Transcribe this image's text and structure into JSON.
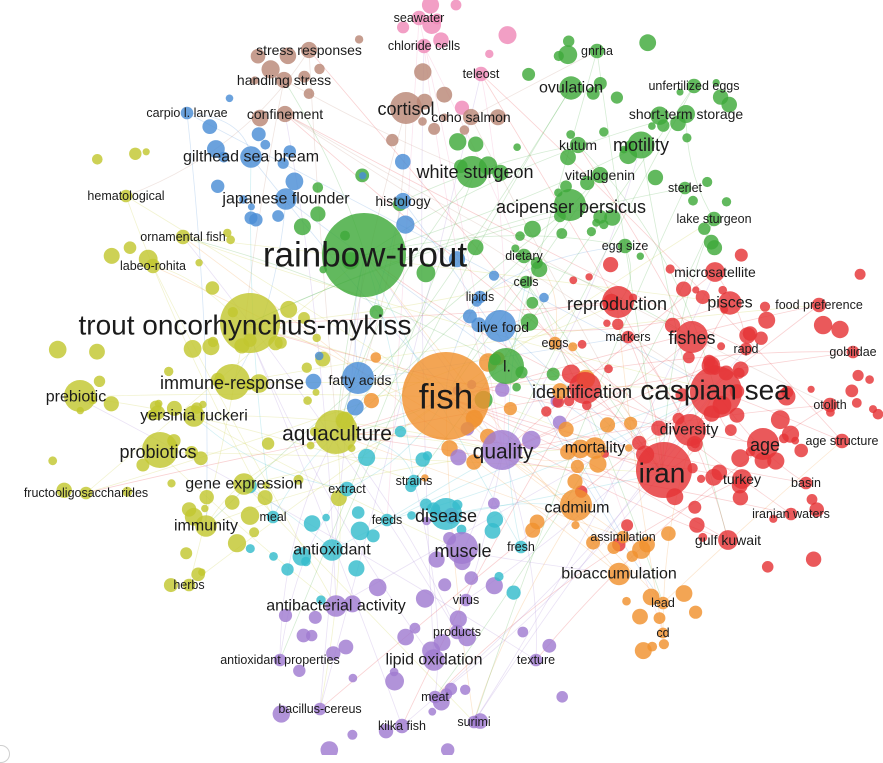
{
  "clusters": {
    "green": {
      "color": "#3fa93b"
    },
    "red": {
      "color": "#e53437"
    },
    "yellow": {
      "color": "#c2c72f"
    },
    "blue": {
      "color": "#4b8ed6"
    },
    "orange": {
      "color": "#f0912e"
    },
    "purple": {
      "color": "#a07bd1"
    },
    "cyan": {
      "color": "#35bccc"
    },
    "brown": {
      "color": "#b98776"
    },
    "pink": {
      "color": "#ef8ab8"
    }
  },
  "terms": [
    {
      "id": "fish",
      "text": "fish",
      "cluster": "orange",
      "weight": 100
    },
    {
      "id": "rainbow-trout",
      "text": "rainbow-trout",
      "cluster": "green",
      "weight": 95
    },
    {
      "id": "trout-oncorhynchus-mykiss",
      "text": "trout oncorhynchus-mykiss",
      "cluster": "yellow",
      "weight": 70
    },
    {
      "id": "caspian-sea",
      "text": "caspian sea",
      "cluster": "red",
      "weight": 60
    },
    {
      "id": "iran",
      "text": "iran",
      "cluster": "red",
      "weight": 62
    },
    {
      "id": "aquaculture",
      "text": "aquaculture",
      "cluster": "yellow",
      "weight": 48
    },
    {
      "id": "quality",
      "text": "quality",
      "cluster": "purple",
      "weight": 42
    },
    {
      "id": "white-sturgeon",
      "text": "white sturgeon",
      "cluster": "green",
      "weight": 35
    },
    {
      "id": "acipenser-persicus",
      "text": "acipenser persicus",
      "cluster": "green",
      "weight": 33
    },
    {
      "id": "identification",
      "text": "identification",
      "cluster": "red",
      "weight": 30
    },
    {
      "id": "reproduction",
      "text": "reproduction",
      "cluster": "red",
      "weight": 32
    },
    {
      "id": "fishes",
      "text": "fishes",
      "cluster": "red",
      "weight": 30
    },
    {
      "id": "immune-response",
      "text": "immune-response",
      "cluster": "yellow",
      "weight": 30
    },
    {
      "id": "probiotics",
      "text": "probiotics",
      "cluster": "yellow",
      "weight": 30
    },
    {
      "id": "prebiotic",
      "text": "prebiotic",
      "cluster": "yellow",
      "weight": 26
    },
    {
      "id": "yersinia-ruckeri",
      "text": "yersinia ruckeri",
      "cluster": "yellow",
      "weight": 24
    },
    {
      "id": "gene-expression",
      "text": "gene expression",
      "cluster": "yellow",
      "weight": 24
    },
    {
      "id": "immunity",
      "text": "immunity",
      "cluster": "yellow",
      "weight": 24
    },
    {
      "id": "disease",
      "text": "disease",
      "cluster": "cyan",
      "weight": 30
    },
    {
      "id": "muscle",
      "text": "muscle",
      "cluster": "purple",
      "weight": 32
    },
    {
      "id": "cadmium",
      "text": "cadmium",
      "cluster": "orange",
      "weight": 28
    },
    {
      "id": "bioaccumulation",
      "text": "bioaccumulation",
      "cluster": "orange",
      "weight": 25
    },
    {
      "id": "diversity",
      "text": "diversity",
      "cluster": "red",
      "weight": 26
    },
    {
      "id": "age",
      "text": "age",
      "cluster": "red",
      "weight": 30
    },
    {
      "id": "mortality",
      "text": "mortality",
      "cluster": "orange",
      "weight": 24
    },
    {
      "id": "cortisol",
      "text": "cortisol",
      "cluster": "brown",
      "weight": 30
    },
    {
      "id": "motility",
      "text": "motility",
      "cluster": "green",
      "weight": 30
    },
    {
      "id": "ovulation",
      "text": "ovulation",
      "cluster": "green",
      "weight": 26
    },
    {
      "id": "gilthead-sea-bream",
      "text": "gilthead sea bream",
      "cluster": "blue",
      "weight": 24
    },
    {
      "id": "japanese-flounder",
      "text": "japanese flounder",
      "cluster": "blue",
      "weight": 24
    },
    {
      "id": "antioxidant",
      "text": "antioxidant",
      "cluster": "cyan",
      "weight": 24
    },
    {
      "id": "antibacterial-activity",
      "text": "antibacterial activity",
      "cluster": "purple",
      "weight": 24
    },
    {
      "id": "lipid-oxidation",
      "text": "lipid oxidation",
      "cluster": "purple",
      "weight": 24
    },
    {
      "id": "pisces",
      "text": "pisces",
      "cluster": "red",
      "weight": 26
    },
    {
      "id": "microsatellite",
      "text": "microsatellite",
      "cluster": "red",
      "weight": 22
    },
    {
      "id": "turkey",
      "text": "turkey",
      "cluster": "red",
      "weight": 22
    },
    {
      "id": "gulf-kuwait",
      "text": "gulf kuwait",
      "cluster": "red",
      "weight": 22
    },
    {
      "id": "fatty-acids",
      "text": "fatty acids",
      "cluster": "blue",
      "weight": 22
    },
    {
      "id": "live-food",
      "text": "live food",
      "cluster": "blue",
      "weight": 22
    },
    {
      "id": "l",
      "text": "l.",
      "cluster": "green",
      "weight": 24
    },
    {
      "id": "short-term-storage",
      "text": "short-term storage",
      "cluster": "green",
      "weight": 20
    },
    {
      "id": "kutum",
      "text": "kutum",
      "cluster": "green",
      "weight": 18
    },
    {
      "id": "vitellogenin",
      "text": "vitellogenin",
      "cluster": "green",
      "weight": 18
    },
    {
      "id": "histology",
      "text": "histology",
      "cluster": "blue",
      "weight": 18
    },
    {
      "id": "coho-salmon",
      "text": "coho salmon",
      "cluster": "brown",
      "weight": 18
    },
    {
      "id": "confinement",
      "text": "confinement",
      "cluster": "brown",
      "weight": 18
    },
    {
      "id": "stress-responses",
      "text": "stress responses",
      "cluster": "brown",
      "weight": 18
    },
    {
      "id": "handling-stress",
      "text": "handling stress",
      "cluster": "brown",
      "weight": 18
    },
    {
      "id": "chloride-cells",
      "text": "chloride cells",
      "cluster": "pink",
      "weight": 16
    },
    {
      "id": "seawater",
      "text": "seawater",
      "cluster": "pink",
      "weight": 16
    },
    {
      "id": "teleost",
      "text": "teleost",
      "cluster": "pink",
      "weight": 16
    },
    {
      "id": "gnrha",
      "text": "gnrha",
      "cluster": "green",
      "weight": 16
    },
    {
      "id": "unfertilized-eggs",
      "text": "unfertilized eggs",
      "cluster": "green",
      "weight": 16
    },
    {
      "id": "sterlet",
      "text": "sterlet",
      "cluster": "green",
      "weight": 14
    },
    {
      "id": "lake-sturgeon",
      "text": "lake sturgeon",
      "cluster": "green",
      "weight": 16
    },
    {
      "id": "egg-size",
      "text": "egg size",
      "cluster": "green",
      "weight": 16
    },
    {
      "id": "dietary",
      "text": "dietary",
      "cluster": "green",
      "weight": 16
    },
    {
      "id": "cells",
      "text": "cells",
      "cluster": "green",
      "weight": 14
    },
    {
      "id": "lipids",
      "text": "lipids",
      "cluster": "blue",
      "weight": 14
    },
    {
      "id": "eggs",
      "text": "eggs",
      "cluster": "orange",
      "weight": 14
    },
    {
      "id": "markers",
      "text": "markers",
      "cluster": "red",
      "weight": 14
    },
    {
      "id": "rapd",
      "text": "rapd",
      "cluster": "red",
      "weight": 14
    },
    {
      "id": "food-preference",
      "text": "food preference",
      "cluster": "red",
      "weight": 16
    },
    {
      "id": "gobiidae",
      "text": "gobiidae",
      "cluster": "red",
      "weight": 14
    },
    {
      "id": "otolith",
      "text": "otolith",
      "cluster": "red",
      "weight": 16
    },
    {
      "id": "age-structure",
      "text": "age structure",
      "cluster": "red",
      "weight": 16
    },
    {
      "id": "basin",
      "text": "basin",
      "cluster": "red",
      "weight": 14
    },
    {
      "id": "iranian-waters",
      "text": "iranian waters",
      "cluster": "red",
      "weight": 14
    },
    {
      "id": "assimilation",
      "text": "assimilation",
      "cluster": "orange",
      "weight": 14
    },
    {
      "id": "lead",
      "text": "lead",
      "cluster": "orange",
      "weight": 14
    },
    {
      "id": "cd",
      "text": "cd",
      "cluster": "orange",
      "weight": 12
    },
    {
      "id": "fresh",
      "text": "fresh",
      "cluster": "cyan",
      "weight": 14
    },
    {
      "id": "feeds",
      "text": "feeds",
      "cluster": "cyan",
      "weight": 14
    },
    {
      "id": "strains",
      "text": "strains",
      "cluster": "cyan",
      "weight": 14
    },
    {
      "id": "extract",
      "text": "extract",
      "cluster": "cyan",
      "weight": 16
    },
    {
      "id": "meal",
      "text": "meal",
      "cluster": "cyan",
      "weight": 14
    },
    {
      "id": "virus",
      "text": "virus",
      "cluster": "purple",
      "weight": 14
    },
    {
      "id": "products",
      "text": "products",
      "cluster": "purple",
      "weight": 16
    },
    {
      "id": "texture",
      "text": "texture",
      "cluster": "purple",
      "weight": 14
    },
    {
      "id": "antioxidant-properties",
      "text": "antioxidant properties",
      "cluster": "purple",
      "weight": 14
    },
    {
      "id": "meat",
      "text": "meat",
      "cluster": "purple",
      "weight": 14
    },
    {
      "id": "bacillus-cereus",
      "text": "bacillus-cereus",
      "cluster": "purple",
      "weight": 14
    },
    {
      "id": "surimi",
      "text": "surimi",
      "cluster": "purple",
      "weight": 14
    },
    {
      "id": "kilka-fish",
      "text": "kilka fish",
      "cluster": "purple",
      "weight": 16
    },
    {
      "id": "herbs",
      "text": "herbs",
      "cluster": "yellow",
      "weight": 14
    },
    {
      "id": "fructooligosaccharides",
      "text": "fructooligosaccharides",
      "cluster": "yellow",
      "weight": 14
    },
    {
      "id": "labeo-rohita",
      "text": "labeo-rohita",
      "cluster": "yellow",
      "weight": 16
    },
    {
      "id": "ornamental-fish",
      "text": "ornamental fish",
      "cluster": "yellow",
      "weight": 16
    },
    {
      "id": "hematological",
      "text": "hematological",
      "cluster": "yellow",
      "weight": 14
    },
    {
      "id": "carpio-l-larvae",
      "text": "carpio l. larvae",
      "cluster": "blue",
      "weight": 14
    }
  ]
}
